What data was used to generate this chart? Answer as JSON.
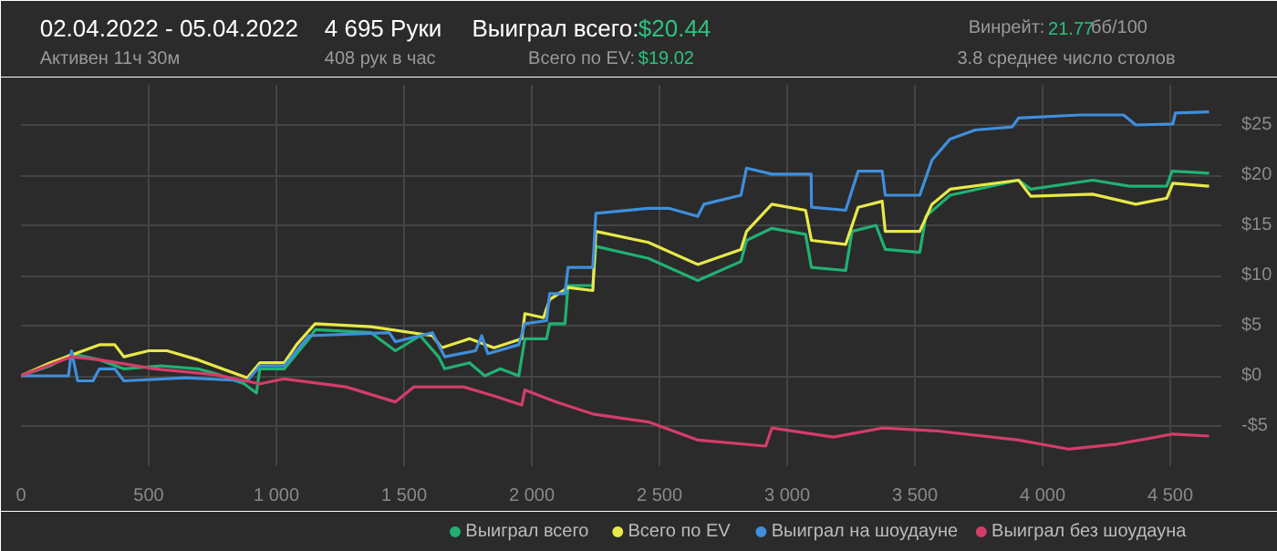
{
  "chart_data": {
    "type": "line",
    "annotations": [
      "02.04.2022 - 05.04.2022",
      "Активен 11ч 30м",
      "4 695 Руки",
      "408 рук в час",
      "Выиграл всего:",
      "$20.44",
      "Всего по EV:",
      "$19.02",
      "Винрейт:",
      "21.77",
      "бб/100",
      "3.8 среднее число столов"
    ],
    "xlim": [
      0,
      4700
    ],
    "ylim": [
      -9,
      29
    ],
    "xticks": [
      0,
      500,
      {
        "value": 1000,
        "label": "1 000"
      },
      {
        "value": 1500,
        "label": "1 500"
      },
      {
        "value": 2000,
        "label": "2 000"
      },
      {
        "value": 2500,
        "label": "2 500"
      },
      {
        "value": 3000,
        "label": "3 000"
      },
      {
        "value": 3500,
        "label": "3 500"
      },
      {
        "value": 4000,
        "label": "4 000"
      },
      {
        "value": 4500,
        "label": "4 500"
      }
    ],
    "yticks": [
      {
        "value": -5,
        "label": "-$5"
      },
      {
        "value": 0,
        "label": "$0"
      },
      {
        "value": 5,
        "label": "$5"
      },
      {
        "value": 10,
        "label": "$10"
      },
      {
        "value": 15,
        "label": "$15"
      },
      {
        "value": 20,
        "label": "$20"
      },
      {
        "value": 25,
        "label": "$25"
      }
    ],
    "grid": true,
    "legend": "bottom right",
    "marker": "none",
    "line_style": "solid",
    "series": [
      {
        "name": "Выиграл всего",
        "color": "#21b173",
        "x": [
          0,
          114,
          198,
          307,
          403,
          548,
          693,
          765,
          874,
          922,
          935,
          1031,
          1128,
          1152,
          1370,
          1466,
          1563,
          1635,
          1659,
          1756,
          1816,
          1877,
          1949,
          1973,
          2058,
          2070,
          2130,
          2142,
          2239,
          2251,
          2457,
          2650,
          2819,
          2841,
          2940,
          3072,
          3095,
          3229,
          3254,
          3348,
          3384,
          3519,
          3543,
          3638,
          3906,
          3954,
          4196,
          4341,
          4486,
          4507,
          4652
        ],
        "values": [
          0,
          1.0,
          2.2,
          1.6,
          0.7,
          1.0,
          0.7,
          0.2,
          -0.8,
          -1.7,
          0.7,
          0.7,
          3.7,
          4.6,
          4.3,
          2.5,
          4.0,
          1.9,
          0.7,
          1.3,
          0,
          0.7,
          0,
          3.7,
          3.7,
          5.2,
          5.2,
          9.0,
          9.0,
          12.9,
          11.7,
          9.5,
          11.4,
          13.5,
          14.7,
          14.1,
          10.8,
          10.5,
          14.4,
          15.0,
          12.6,
          12.3,
          15.9,
          18.0,
          19.5,
          18.6,
          19.5,
          18.9,
          18.9,
          20.4,
          20.2
        ]
      },
      {
        "name": "Всего по EV",
        "color": "#e8e84a",
        "x": [
          0,
          114,
          307,
          367,
          403,
          500,
          572,
          693,
          886,
          935,
          1031,
          1079,
          1152,
          1370,
          1611,
          1647,
          1756,
          1852,
          1961,
          1973,
          2046,
          2070,
          2142,
          2239,
          2251,
          2457,
          2650,
          2819,
          2841,
          2940,
          3072,
          3095,
          3229,
          3278,
          3372,
          3384,
          3519,
          3567,
          3638,
          3906,
          3954,
          4196,
          4365,
          4486,
          4510,
          4652
        ],
        "values": [
          0,
          1.3,
          3.1,
          3.1,
          1.9,
          2.5,
          2.5,
          1.6,
          -0.2,
          1.3,
          1.3,
          3.1,
          5.2,
          4.9,
          4.0,
          2.8,
          3.7,
          2.8,
          3.7,
          6.2,
          5.8,
          7.6,
          8.8,
          8.5,
          14.4,
          13.3,
          11.1,
          12.6,
          14.4,
          17.1,
          16.5,
          13.5,
          13.1,
          16.8,
          17.4,
          14.4,
          14.4,
          17.1,
          18.6,
          19.5,
          17.9,
          18.1,
          17.1,
          17.7,
          19.2,
          18.9
        ]
      },
      {
        "name": "Выиграл на шоудауне",
        "color": "#3f8fdc",
        "x": [
          0,
          186,
          198,
          222,
          282,
          307,
          367,
          403,
          645,
          886,
          935,
          1031,
          1128,
          1442,
          1466,
          1611,
          1659,
          1780,
          1804,
          1828,
          1949,
          1973,
          2058,
          2070,
          2130,
          2142,
          2239,
          2251,
          2457,
          2536,
          2650,
          2674,
          2819,
          2841,
          2940,
          3094,
          3095,
          3229,
          3278,
          3372,
          3384,
          3519,
          3567,
          3638,
          3736,
          3881,
          3906,
          4147,
          4317,
          4365,
          4510,
          4520,
          4652
        ],
        "values": [
          0,
          0,
          2.5,
          -0.5,
          -0.5,
          0.7,
          0.7,
          -0.5,
          -0.2,
          -0.5,
          1.0,
          1.0,
          4.0,
          4.3,
          3.4,
          4.3,
          1.9,
          2.5,
          4.0,
          2.2,
          3.1,
          5.2,
          5.5,
          8.2,
          8.2,
          10.8,
          10.8,
          16.2,
          16.7,
          16.7,
          15.9,
          17.1,
          18.0,
          20.7,
          20.1,
          20.1,
          16.8,
          16.5,
          20.4,
          20.4,
          18.0,
          18.0,
          21.5,
          23.6,
          24.5,
          24.8,
          25.7,
          26.0,
          26.0,
          25.0,
          25.1,
          26.2,
          26.3
        ]
      },
      {
        "name": "Выиграл без шоудауна",
        "color": "#d43d6a",
        "x": [
          0,
          198,
          307,
          524,
          765,
          935,
          1031,
          1273,
          1466,
          1539,
          1611,
          1732,
          1852,
          1961,
          1973,
          2094,
          2239,
          2457,
          2650,
          2916,
          2940,
          3181,
          3372,
          3591,
          3906,
          4100,
          4292,
          4510,
          4652
        ],
        "values": [
          0,
          1.9,
          1.6,
          0.7,
          0.1,
          -0.8,
          -0.3,
          -1.1,
          -2.6,
          -1.1,
          -1.1,
          -1.1,
          -2.0,
          -2.9,
          -1.4,
          -2.6,
          -3.8,
          -4.6,
          -6.4,
          -7.0,
          -5.2,
          -6.1,
          -5.2,
          -5.5,
          -6.4,
          -7.3,
          -6.8,
          -5.8,
          -6.0
        ]
      }
    ]
  }
}
